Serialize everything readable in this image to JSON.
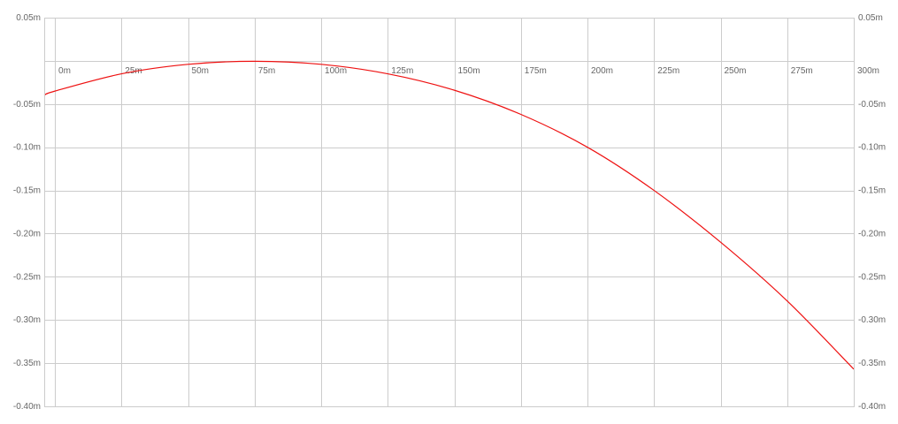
{
  "chart_data": {
    "type": "line",
    "title": "",
    "xlabel": "",
    "ylabel": "",
    "x_unit": "m",
    "y_unit": "m",
    "xlim": [
      -4,
      300
    ],
    "ylim": [
      -0.4,
      0.05
    ],
    "x_ticks": [
      0,
      25,
      50,
      75,
      100,
      125,
      150,
      175,
      200,
      225,
      250,
      275,
      300
    ],
    "x_tick_labels": [
      "0m",
      "25m",
      "50m",
      "75m",
      "100m",
      "125m",
      "150m",
      "175m",
      "200m",
      "225m",
      "250m",
      "275m",
      "300m"
    ],
    "y_ticks": [
      0.05,
      -0.05,
      -0.1,
      -0.15,
      -0.2,
      -0.25,
      -0.3,
      -0.35,
      -0.4
    ],
    "y_tick_labels": [
      "0.05m",
      "-0.05m",
      "-0.10m",
      "-0.15m",
      "-0.20m",
      "-0.25m",
      "-0.30m",
      "-0.35m",
      "-0.40m"
    ],
    "x_label_row": 0,
    "y_axis_labels_both_sides": true,
    "grid": true,
    "legend": "none",
    "series": [
      {
        "color": "#ee1111",
        "x": [
          -4,
          0,
          25,
          50,
          75,
          100,
          125,
          150,
          175,
          200,
          225,
          250,
          275,
          300
        ],
        "y": [
          -0.04,
          -0.035,
          -0.015,
          -0.004,
          -0.0005,
          -0.004,
          -0.015,
          -0.034,
          -0.062,
          -0.1,
          -0.15,
          -0.21,
          -0.278,
          -0.357
        ]
      }
    ]
  }
}
